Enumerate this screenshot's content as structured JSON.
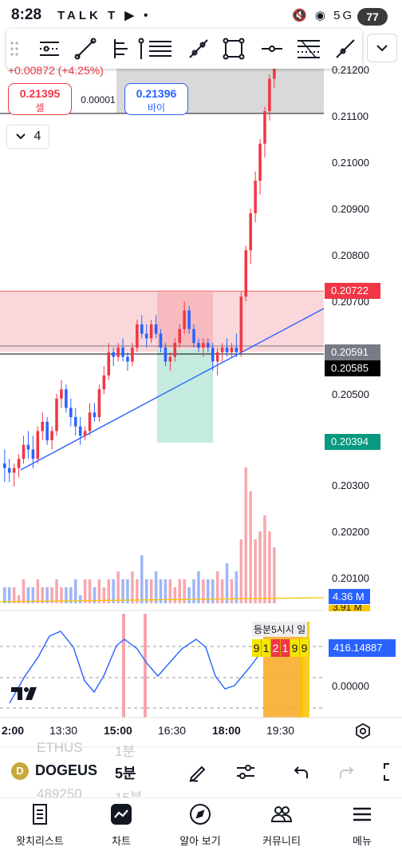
{
  "status_bar": {
    "time": "8:28",
    "left_icons": "TALK T ▶ •",
    "right_icons": "🔇 ◉ 5G ▮",
    "battery": "77"
  },
  "drawing_toolbar": {
    "tools": [
      "info-lines-icon",
      "trend-line-icon",
      "pitchfork-icon",
      "vertical-line-icon",
      "horizontal-lines-icon",
      "ray-icon",
      "rectangle-icon",
      "horizontal-line-icon",
      "fib-retracement-icon",
      "pen-line-icon"
    ]
  },
  "order_panel": {
    "price_change": "+0.00872 (+4.25%)",
    "sell_price": "0.21395",
    "sell_label": "셀",
    "spread": "0.00001",
    "buy_price": "0.21396",
    "buy_label": "바이",
    "indicator_count": "4"
  },
  "price_axis": {
    "ticks": [
      "0.21200",
      "0.21100",
      "0.21000",
      "0.20900",
      "0.20800",
      "0.20700",
      "0.20500",
      "0.20300",
      "0.20200",
      "0.20100"
    ],
    "tags": [
      {
        "value": "0.20722",
        "color": "#f23645"
      },
      {
        "value": "0.20591",
        "color": "#787b86"
      },
      {
        "value": "0.20585",
        "color": "#000000"
      },
      {
        "value": "0.20394",
        "color": "#089981"
      }
    ]
  },
  "volume": {
    "value": "4.36 M",
    "secondary": "3.91 M"
  },
  "oscillator": {
    "header_text": "등분5시시 일",
    "digits": [
      "9",
      "1",
      "2",
      "1",
      "9",
      "9"
    ],
    "value": "416.14887",
    "zero": "0.00000"
  },
  "time_axis": {
    "ticks": [
      {
        "label": "2:00",
        "bold": true
      },
      {
        "label": "13:30",
        "bold": false
      },
      {
        "label": "15:00",
        "bold": true
      },
      {
        "label": "16:30",
        "bold": false
      },
      {
        "label": "18:00",
        "bold": true
      },
      {
        "label": "19:30",
        "bold": false
      }
    ]
  },
  "symbol_bar": {
    "symbol": "DOGEUS",
    "interval": "5분",
    "ghost_symbol_above": "ETHUS",
    "ghost_interval_above": "1분",
    "ghost_symbol_below": "489250",
    "ghost_interval_below": "15분",
    "coin_glyph": "D"
  },
  "bottom_nav": {
    "items": [
      "왓치리스트",
      "차트",
      "알아 보기",
      "커뮤니티",
      "메뉴"
    ]
  },
  "colors": {
    "up": "#089981",
    "down": "#f23645",
    "accent": "#2962ff"
  },
  "chart_data": {
    "type": "candlestick",
    "price_range": [
      0.2025,
      0.2125
    ],
    "candles": [
      [
        0.2035,
        0.2038,
        0.2031,
        0.2034
      ],
      [
        0.2034,
        0.2036,
        0.2031,
        0.2033
      ],
      [
        0.2033,
        0.2035,
        0.203,
        0.2034
      ],
      [
        0.2034,
        0.2037,
        0.2032,
        0.2036
      ],
      [
        0.2036,
        0.2041,
        0.2035,
        0.2039
      ],
      [
        0.2039,
        0.2042,
        0.2036,
        0.2038
      ],
      [
        0.2038,
        0.2041,
        0.2034,
        0.2036
      ],
      [
        0.2036,
        0.2043,
        0.2035,
        0.2042
      ],
      [
        0.2042,
        0.2046,
        0.204,
        0.2044
      ],
      [
        0.2044,
        0.2045,
        0.2039,
        0.204
      ],
      [
        0.204,
        0.2043,
        0.2038,
        0.2042
      ],
      [
        0.2042,
        0.205,
        0.2041,
        0.2049
      ],
      [
        0.2049,
        0.2053,
        0.2047,
        0.2051
      ],
      [
        0.2051,
        0.2052,
        0.2046,
        0.2047
      ],
      [
        0.2047,
        0.2049,
        0.2043,
        0.2045
      ],
      [
        0.2045,
        0.2047,
        0.2041,
        0.2043
      ],
      [
        0.2043,
        0.2045,
        0.2039,
        0.2041
      ],
      [
        0.2041,
        0.2043,
        0.204,
        0.2042
      ],
      [
        0.2042,
        0.2048,
        0.2041,
        0.2046
      ],
      [
        0.2046,
        0.2048,
        0.2044,
        0.2045
      ],
      [
        0.2045,
        0.2052,
        0.2044,
        0.2051
      ],
      [
        0.2051,
        0.2056,
        0.205,
        0.2054
      ],
      [
        0.2054,
        0.2061,
        0.2053,
        0.2059
      ],
      [
        0.2059,
        0.206,
        0.2056,
        0.2058
      ],
      [
        0.2058,
        0.2061,
        0.2057,
        0.206
      ],
      [
        0.206,
        0.2062,
        0.2057,
        0.2058
      ],
      [
        0.2058,
        0.2059,
        0.2055,
        0.2057
      ],
      [
        0.2057,
        0.2061,
        0.2056,
        0.206
      ],
      [
        0.206,
        0.2066,
        0.2059,
        0.2065
      ],
      [
        0.2065,
        0.2067,
        0.2062,
        0.2063
      ],
      [
        0.2063,
        0.2065,
        0.206,
        0.2062
      ],
      [
        0.2062,
        0.2066,
        0.2061,
        0.2065
      ],
      [
        0.2065,
        0.2067,
        0.2062,
        0.2063
      ],
      [
        0.2063,
        0.2064,
        0.2059,
        0.206
      ],
      [
        0.206,
        0.2061,
        0.2056,
        0.2057
      ],
      [
        0.2057,
        0.2059,
        0.2055,
        0.2058
      ],
      [
        0.2058,
        0.2062,
        0.2057,
        0.2061
      ],
      [
        0.2061,
        0.2065,
        0.206,
        0.2064
      ],
      [
        0.2064,
        0.207,
        0.2063,
        0.2068
      ],
      [
        0.2068,
        0.2069,
        0.2063,
        0.2064
      ],
      [
        0.2064,
        0.2065,
        0.206,
        0.2061
      ],
      [
        0.2061,
        0.2062,
        0.2059,
        0.206
      ],
      [
        0.206,
        0.2062,
        0.2058,
        0.2061
      ],
      [
        0.2061,
        0.2062,
        0.2059,
        0.206
      ],
      [
        0.206,
        0.2061,
        0.2055,
        0.2057
      ],
      [
        0.2057,
        0.206,
        0.2054,
        0.2059
      ],
      [
        0.2059,
        0.2061,
        0.2057,
        0.206
      ],
      [
        0.206,
        0.2062,
        0.2058,
        0.2059
      ],
      [
        0.2059,
        0.2061,
        0.2058,
        0.206
      ],
      [
        0.206,
        0.2063,
        0.2058,
        0.2059
      ],
      [
        0.2059,
        0.2072,
        0.2058,
        0.2071
      ],
      [
        0.2071,
        0.2082,
        0.207,
        0.2081
      ],
      [
        0.2081,
        0.209,
        0.2078,
        0.2089
      ],
      [
        0.2089,
        0.2098,
        0.2087,
        0.2096
      ],
      [
        0.2096,
        0.2105,
        0.2093,
        0.2104
      ],
      [
        0.2104,
        0.2112,
        0.2101,
        0.2111
      ],
      [
        0.2111,
        0.2119,
        0.2109,
        0.2118
      ],
      [
        0.2118,
        0.2124,
        0.2116,
        0.2121
      ]
    ],
    "volumes": [
      2,
      2,
      2,
      1,
      3,
      2,
      2,
      3,
      2,
      2,
      2,
      3,
      2,
      2,
      2,
      3,
      1,
      3,
      3,
      2,
      3,
      2,
      3,
      3,
      4,
      3,
      3,
      4,
      3,
      6,
      3,
      3,
      4,
      3,
      3,
      3,
      2,
      3,
      3,
      2,
      3,
      4,
      3,
      3,
      3,
      4,
      3,
      5,
      3,
      4,
      8,
      17,
      14,
      8,
      9,
      11,
      9,
      7
    ]
  }
}
